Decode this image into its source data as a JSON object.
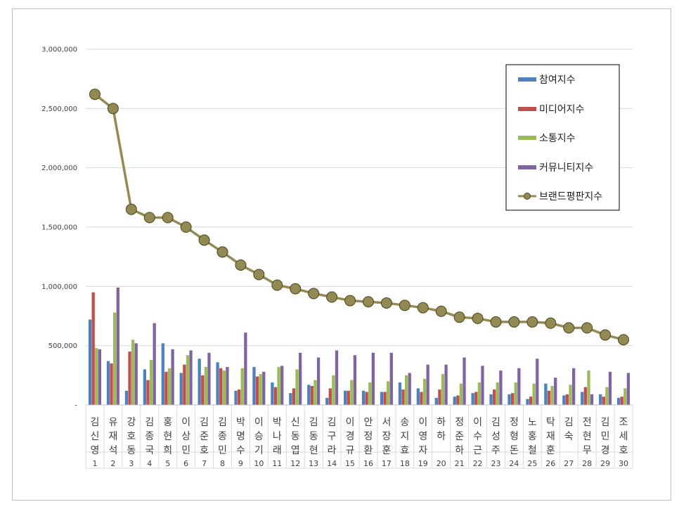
{
  "chart_data": {
    "type": "bar",
    "title": "",
    "xlabel": "",
    "ylabel": "",
    "ylim": [
      0,
      3000000
    ],
    "yticks": [
      "-",
      "500,000",
      "1,000,000",
      "1,500,000",
      "2,000,000",
      "2,500,000",
      "3,000,000"
    ],
    "grid": true,
    "legend_position": "top-right",
    "names": [
      "김신영",
      "유재석",
      "강호동",
      "김종국",
      "홍현희",
      "이상민",
      "김준호",
      "김종민",
      "박명수",
      "이승기",
      "박나래",
      "신동엽",
      "김동현",
      "김구라",
      "이경규",
      "안정환",
      "서장훈",
      "송지효",
      "이영자",
      "하하",
      "정준하",
      "이수근",
      "김성주",
      "정형돈",
      "노홍철",
      "탁재훈",
      "김숙",
      "전현무",
      "김민경",
      "조세호"
    ],
    "ranks": [
      "1",
      "2",
      "3",
      "4",
      "5",
      "6",
      "7",
      "8",
      "9",
      "10",
      "11",
      "12",
      "13",
      "14",
      "15",
      "16",
      "17",
      "18",
      "19",
      "20",
      "21",
      "22",
      "23",
      "24",
      "25",
      "26",
      "27",
      "28",
      "29",
      "30"
    ],
    "series": [
      {
        "name": "참여지수",
        "kind": "bar",
        "color": "#4f81bd",
        "values": [
          720000,
          370000,
          120000,
          300000,
          520000,
          270000,
          390000,
          360000,
          120000,
          320000,
          190000,
          100000,
          170000,
          60000,
          120000,
          120000,
          110000,
          190000,
          140000,
          60000,
          70000,
          100000,
          90000,
          90000,
          50000,
          180000,
          80000,
          110000,
          90000,
          60000
        ]
      },
      {
        "name": "미디어지수",
        "kind": "bar",
        "color": "#c0504d",
        "values": [
          950000,
          350000,
          450000,
          210000,
          280000,
          340000,
          250000,
          310000,
          130000,
          240000,
          150000,
          140000,
          160000,
          140000,
          120000,
          110000,
          110000,
          130000,
          110000,
          130000,
          80000,
          110000,
          130000,
          100000,
          70000,
          120000,
          90000,
          150000,
          70000,
          70000
        ]
      },
      {
        "name": "소통지수",
        "kind": "bar",
        "color": "#9bbb59",
        "values": [
          480000,
          780000,
          550000,
          380000,
          310000,
          420000,
          320000,
          290000,
          310000,
          260000,
          320000,
          300000,
          210000,
          250000,
          210000,
          190000,
          200000,
          250000,
          220000,
          260000,
          180000,
          190000,
          190000,
          190000,
          180000,
          160000,
          170000,
          290000,
          150000,
          140000
        ]
      },
      {
        "name": "커뮤니티지수",
        "kind": "bar",
        "color": "#8064a2",
        "values": [
          470000,
          990000,
          520000,
          690000,
          470000,
          460000,
          440000,
          320000,
          610000,
          280000,
          330000,
          440000,
          400000,
          460000,
          420000,
          440000,
          440000,
          270000,
          340000,
          340000,
          400000,
          330000,
          290000,
          310000,
          390000,
          230000,
          310000,
          90000,
          280000,
          270000
        ]
      },
      {
        "name": "브랜드평판지수",
        "kind": "line",
        "color": "#948a54",
        "values": [
          2620000,
          2500000,
          1650000,
          1580000,
          1580000,
          1500000,
          1390000,
          1290000,
          1180000,
          1100000,
          1010000,
          980000,
          940000,
          910000,
          880000,
          870000,
          860000,
          840000,
          820000,
          790000,
          740000,
          730000,
          700000,
          700000,
          700000,
          690000,
          650000,
          650000,
          590000,
          550000
        ]
      }
    ]
  }
}
